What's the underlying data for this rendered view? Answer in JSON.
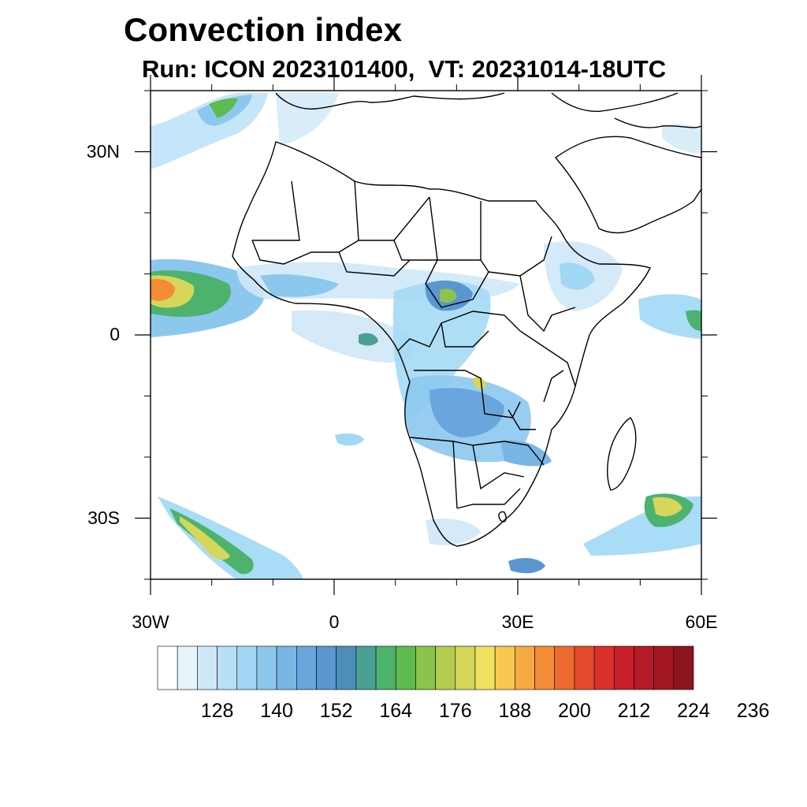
{
  "title": "Convection index",
  "subtitle": "Run: ICON 2023101400,  VT: 20231014-18UTC",
  "map": {
    "lon_range": [
      -30,
      60
    ],
    "lat_range": [
      -40,
      40
    ],
    "x_ticks": [
      {
        "value": -30,
        "label": "30W"
      },
      {
        "value": 0,
        "label": "0"
      },
      {
        "value": 30,
        "label": "30E"
      },
      {
        "value": 60,
        "label": "60E"
      }
    ],
    "y_ticks": [
      {
        "value": 30,
        "label": "30N"
      },
      {
        "value": 0,
        "label": "0"
      },
      {
        "value": -30,
        "label": "30S"
      }
    ],
    "minor_lon_step": 10,
    "minor_lat_step": 10
  },
  "colorbar": {
    "colors": [
      "#ffffff",
      "#e8f4fb",
      "#cfe8f7",
      "#b7e0f6",
      "#a0d8f5",
      "#8cc8ee",
      "#79b6e6",
      "#6aa5dd",
      "#5a96d0",
      "#4d8fb8",
      "#4aa193",
      "#4db26e",
      "#5dbb4f",
      "#8cc34d",
      "#b2cd4f",
      "#d6d75a",
      "#f0e15e",
      "#f7c953",
      "#f6aa43",
      "#f38b37",
      "#ee6a2e",
      "#e44a2b",
      "#d9302b",
      "#c8212b",
      "#b51a27",
      "#a21723",
      "#8e151f"
    ],
    "labels": [
      "128",
      "140",
      "152",
      "164",
      "176",
      "188",
      "200",
      "212",
      "224",
      "236"
    ]
  },
  "layers": {
    "coastline_color": "#000000",
    "field_name": "convection-index"
  }
}
